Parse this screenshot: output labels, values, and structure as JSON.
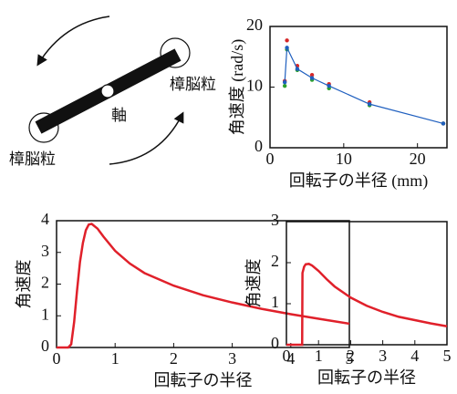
{
  "diagram": {
    "labels": [
      "樟脳粒",
      "樟脳粒",
      "軸"
    ]
  },
  "chart_data": [
    {
      "type": "line",
      "xlabel": "回転子の半径 (mm)",
      "ylabel": "角速度 (rad/s)",
      "xlim": [
        0,
        24
      ],
      "ylim": [
        0,
        20
      ],
      "xticks": [
        0,
        10,
        20
      ],
      "yticks": [
        0,
        10,
        20
      ],
      "series": [
        {
          "color": "#d62728",
          "mode": "markers",
          "x": [
            2.0,
            2.3,
            3.7,
            5.7,
            8.0,
            13.5,
            23.5
          ],
          "values": [
            11.0,
            17.7,
            13.5,
            12.0,
            10.5,
            7.5,
            4.0
          ]
        },
        {
          "color": "#2ca02c",
          "mode": "markers",
          "x": [
            2.0,
            2.3,
            3.7,
            5.7,
            8.0,
            13.5,
            23.5
          ],
          "values": [
            10.2,
            16.2,
            12.8,
            11.2,
            9.8,
            7.0,
            4.0
          ]
        },
        {
          "color": "#1f5fbf",
          "mode": "lines+markers",
          "x": [
            2.0,
            2.3,
            3.7,
            5.7,
            8.0,
            13.5,
            23.5
          ],
          "values": [
            10.8,
            16.5,
            13.0,
            11.5,
            10.2,
            7.2,
            4.0
          ]
        }
      ]
    },
    {
      "type": "line",
      "xlabel": "回転子の半径",
      "ylabel": "角速度",
      "xlim": [
        0,
        5
      ],
      "ylim": [
        0,
        4
      ],
      "xticks": [
        0,
        1,
        2,
        3,
        4,
        5
      ],
      "yticks": [
        0,
        1,
        2,
        3,
        4
      ],
      "series": [
        {
          "color": "#e0202a",
          "mode": "lines",
          "x": [
            0,
            0.1,
            0.2,
            0.25,
            0.3,
            0.35,
            0.4,
            0.45,
            0.5,
            0.55,
            0.6,
            0.7,
            0.8,
            1,
            1.25,
            1.5,
            2,
            2.5,
            3,
            3.5,
            4,
            4.5,
            5
          ],
          "values": [
            0,
            0,
            0,
            0.1,
            0.8,
            1.8,
            2.7,
            3.3,
            3.7,
            3.88,
            3.9,
            3.75,
            3.5,
            3.05,
            2.65,
            2.35,
            1.95,
            1.65,
            1.42,
            1.22,
            1.05,
            0.9,
            0.75
          ]
        }
      ]
    },
    {
      "type": "line",
      "xlabel": "回転子の半径",
      "ylabel": "角速度",
      "xlim": [
        0,
        5
      ],
      "ylim": [
        0,
        3
      ],
      "xticks": [
        0,
        1,
        2,
        3,
        4,
        5
      ],
      "yticks": [
        0,
        1,
        2,
        3
      ],
      "series": [
        {
          "color": "#e0202a",
          "mode": "lines",
          "x": [
            0,
            0.49,
            0.5,
            0.55,
            0.6,
            0.7,
            0.8,
            1,
            1.25,
            1.5,
            2,
            2.5,
            3,
            3.5,
            4,
            4.5,
            5
          ],
          "values": [
            0,
            0,
            1.75,
            1.9,
            1.96,
            1.97,
            1.93,
            1.8,
            1.6,
            1.42,
            1.15,
            0.95,
            0.8,
            0.68,
            0.6,
            0.52,
            0.45
          ]
        }
      ]
    }
  ]
}
